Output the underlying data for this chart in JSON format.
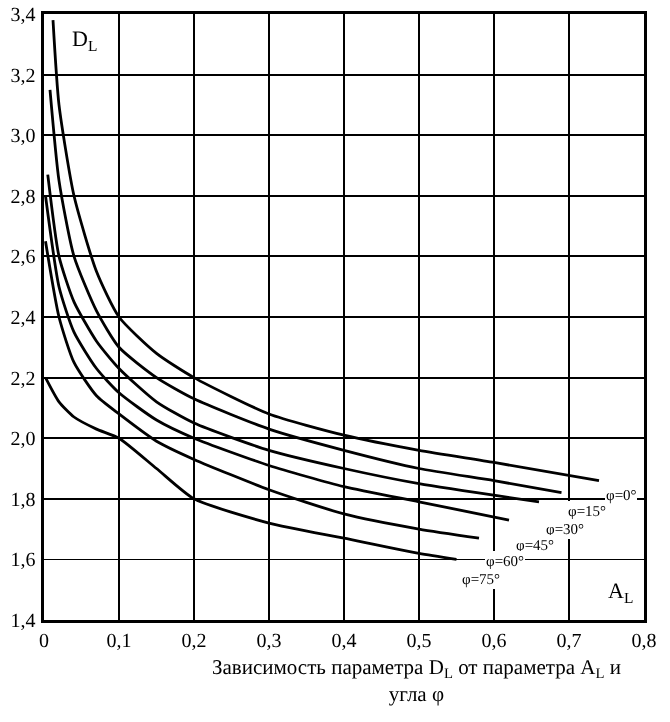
{
  "chart_data": {
    "type": "line",
    "xlabel": "A$_{L}$",
    "ylabel": "D$_{L}$",
    "annotations": [
      "Зависимость параметра D$_{L}$ от параметра A$_{L}$ и угла φ"
    ],
    "series": [
      {
        "name": "φ=0°",
        "color": "#000000",
        "x": [
          0.012,
          0.02,
          0.04,
          0.07,
          0.1,
          0.15,
          0.2,
          0.3,
          0.4,
          0.5,
          0.6,
          0.74
        ],
        "values": [
          3.38,
          3.1,
          2.8,
          2.55,
          2.4,
          2.28,
          2.2,
          2.08,
          2.01,
          1.96,
          1.92,
          1.86
        ]
      },
      {
        "name": "φ=15°",
        "color": "#000000",
        "x": [
          0.008,
          0.02,
          0.04,
          0.07,
          0.1,
          0.15,
          0.2,
          0.3,
          0.4,
          0.5,
          0.6,
          0.69
        ],
        "values": [
          3.15,
          2.85,
          2.6,
          2.42,
          2.3,
          2.2,
          2.13,
          2.03,
          1.96,
          1.9,
          1.86,
          1.82
        ]
      },
      {
        "name": "φ=30°",
        "color": "#000000",
        "x": [
          0.005,
          0.02,
          0.04,
          0.07,
          0.1,
          0.15,
          0.2,
          0.3,
          0.4,
          0.5,
          0.66
        ],
        "values": [
          2.87,
          2.6,
          2.45,
          2.32,
          2.23,
          2.12,
          2.05,
          1.96,
          1.9,
          1.85,
          1.79
        ]
      },
      {
        "name": "φ=45°",
        "color": "#000000",
        "x": [
          0.002,
          0.02,
          0.04,
          0.07,
          0.1,
          0.15,
          0.2,
          0.3,
          0.4,
          0.5,
          0.62
        ],
        "values": [
          2.8,
          2.5,
          2.35,
          2.23,
          2.15,
          2.06,
          2.0,
          1.91,
          1.84,
          1.79,
          1.73
        ]
      },
      {
        "name": "φ=60°",
        "color": "#000000",
        "x": [
          0.002,
          0.02,
          0.04,
          0.07,
          0.1,
          0.15,
          0.2,
          0.3,
          0.4,
          0.5,
          0.58
        ],
        "values": [
          2.65,
          2.4,
          2.25,
          2.14,
          2.08,
          1.99,
          1.93,
          1.83,
          1.75,
          1.7,
          1.67
        ]
      },
      {
        "name": "φ=75°",
        "color": "#000000",
        "x": [
          0.002,
          0.02,
          0.04,
          0.07,
          0.1,
          0.15,
          0.2,
          0.3,
          0.4,
          0.5,
          0.55
        ],
        "values": [
          2.2,
          2.12,
          2.07,
          2.03,
          2.0,
          1.9,
          1.8,
          1.72,
          1.67,
          1.62,
          1.6
        ]
      }
    ],
    "xlim": [
      0,
      0.8
    ],
    "xticks": [
      0,
      {
        "value": 0.1,
        "label": "0,1"
      },
      {
        "value": 0.2,
        "label": "0,2"
      },
      {
        "value": 0.3,
        "label": "0,3"
      },
      {
        "value": 0.4,
        "label": "0,4"
      },
      {
        "value": 0.5,
        "label": "0,5"
      },
      {
        "value": 0.6,
        "label": "0,6"
      },
      {
        "value": 0.7,
        "label": "0,7"
      },
      {
        "value": 0.8,
        "label": "0,8"
      }
    ],
    "ylim": [
      1.4,
      3.4
    ],
    "yticks": [
      {
        "value": 1.4,
        "label": "1,4"
      },
      {
        "value": 1.6,
        "label": "1,6"
      },
      {
        "value": 1.8,
        "label": "1,8"
      },
      {
        "value": 2.0,
        "label": "2,0"
      },
      {
        "value": 2.2,
        "label": "2,2"
      },
      {
        "value": 2.4,
        "label": "2,4"
      },
      {
        "value": 2.6,
        "label": "2,6"
      },
      {
        "value": 2.8,
        "label": "2,8"
      },
      {
        "value": 3.0,
        "label": "3,0"
      },
      {
        "value": 3.2,
        "label": "3,2"
      },
      {
        "value": 3.4,
        "label": "3,4"
      }
    ],
    "grid": true,
    "legend": false,
    "marker": "none",
    "line_style": "solid"
  }
}
